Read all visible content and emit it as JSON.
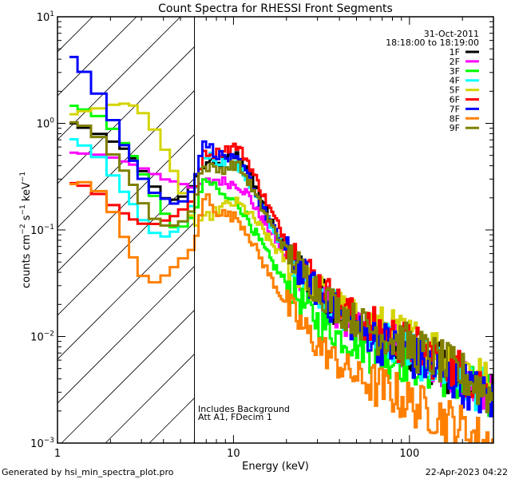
{
  "chart_data": {
    "type": "line",
    "title": "Count Spectra for RHESSI Front Segments",
    "xlabel": "Energy (keV)",
    "ylabel": "counts cm^-2 s^-1 keV^-1",
    "xscale": "log",
    "yscale": "log",
    "xlim": [
      1,
      300
    ],
    "ylim": [
      0.001,
      10
    ],
    "x_tick_labels": [
      "1",
      "10",
      "100"
    ],
    "x_tick_values": [
      1,
      10,
      100
    ],
    "y_tick_labels": [
      {
        "base": "10",
        "exp": "1",
        "value": 10
      },
      {
        "base": "10",
        "exp": "0",
        "value": 1
      },
      {
        "base": "10",
        "exp": "−1",
        "value": 0.1
      },
      {
        "base": "10",
        "exp": "−2",
        "value": 0.01
      },
      {
        "base": "10",
        "exp": "−3",
        "value": 0.001
      }
    ],
    "grid": false,
    "hatched_region": {
      "from_keV": 1,
      "to_keV": 6,
      "meaning": "excluded low-energy region"
    },
    "vertical_line_keV": 6,
    "legend": {
      "placement": "top-right",
      "date": "31-Oct-2011",
      "time_range": "18:18:00 to 18:19:00"
    },
    "annotations": [
      "Includes Background",
      "Att A1, FDecim 1"
    ],
    "series": [
      {
        "name": "1F",
        "color": "#000000",
        "points": [
          [
            1.17,
            1.1
          ],
          [
            1.3,
            0.91
          ],
          [
            1.5,
            0.91
          ],
          [
            1.9,
            0.72
          ],
          [
            2.3,
            0.62
          ],
          [
            2.8,
            0.44
          ],
          [
            3.3,
            0.3
          ],
          [
            4.0,
            0.2
          ],
          [
            4.8,
            0.19
          ],
          [
            5.5,
            0.22
          ],
          [
            6.0,
            0.3
          ],
          [
            6.5,
            0.36
          ],
          [
            7.0,
            0.42
          ],
          [
            8.0,
            0.4
          ],
          [
            9.0,
            0.46
          ],
          [
            10.5,
            0.5
          ],
          [
            12,
            0.38
          ],
          [
            14,
            0.22
          ],
          [
            16,
            0.13
          ],
          [
            18,
            0.09
          ],
          [
            20,
            0.065
          ],
          [
            25,
            0.04
          ],
          [
            30,
            0.028
          ],
          [
            40,
            0.017
          ],
          [
            50,
            0.013
          ],
          [
            60,
            0.011
          ],
          [
            80,
            0.009
          ],
          [
            100,
            0.0075
          ],
          [
            130,
            0.006
          ],
          [
            160,
            0.005
          ],
          [
            200,
            0.0042
          ],
          [
            250,
            0.0033
          ],
          [
            300,
            0.0026
          ]
        ]
      },
      {
        "name": "2F",
        "color": "#ff00ff",
        "points": [
          [
            1.17,
            0.54
          ],
          [
            1.3,
            0.52
          ],
          [
            1.5,
            0.52
          ],
          [
            1.9,
            0.5
          ],
          [
            2.3,
            0.45
          ],
          [
            2.8,
            0.4
          ],
          [
            3.3,
            0.36
          ],
          [
            4.0,
            0.3
          ],
          [
            4.8,
            0.28
          ],
          [
            5.5,
            0.26
          ],
          [
            6.0,
            0.24
          ],
          [
            6.5,
            0.27
          ],
          [
            7.0,
            0.28
          ],
          [
            8.0,
            0.3
          ],
          [
            9.0,
            0.28
          ],
          [
            10.5,
            0.27
          ],
          [
            12,
            0.22
          ],
          [
            14,
            0.14
          ],
          [
            16,
            0.1
          ],
          [
            18,
            0.075
          ],
          [
            20,
            0.055
          ],
          [
            25,
            0.036
          ],
          [
            30,
            0.026
          ],
          [
            40,
            0.016
          ],
          [
            50,
            0.012
          ],
          [
            60,
            0.01
          ],
          [
            80,
            0.0085
          ],
          [
            100,
            0.0072
          ],
          [
            130,
            0.006
          ],
          [
            160,
            0.0052
          ],
          [
            200,
            0.0043
          ],
          [
            250,
            0.0035
          ],
          [
            300,
            0.003
          ]
        ]
      },
      {
        "name": "3F",
        "color": "#00ff00",
        "points": [
          [
            1.17,
            1.58
          ],
          [
            1.3,
            1.35
          ],
          [
            1.5,
            1.35
          ],
          [
            1.9,
            1.05
          ],
          [
            2.3,
            0.72
          ],
          [
            2.8,
            0.45
          ],
          [
            3.3,
            0.26
          ],
          [
            4.0,
            0.15
          ],
          [
            4.8,
            0.095
          ],
          [
            5.5,
            0.12
          ],
          [
            6.0,
            0.14
          ],
          [
            6.5,
            0.22
          ],
          [
            7.0,
            0.3
          ],
          [
            8.0,
            0.24
          ],
          [
            9.0,
            0.2
          ],
          [
            10.5,
            0.18
          ],
          [
            12,
            0.13
          ],
          [
            14,
            0.08
          ],
          [
            16,
            0.055
          ],
          [
            18,
            0.04
          ],
          [
            20,
            0.032
          ],
          [
            25,
            0.02
          ],
          [
            30,
            0.014
          ],
          [
            40,
            0.01
          ],
          [
            50,
            0.0085
          ],
          [
            60,
            0.0075
          ],
          [
            80,
            0.0065
          ],
          [
            100,
            0.0058
          ],
          [
            130,
            0.005
          ],
          [
            160,
            0.0044
          ],
          [
            200,
            0.0036
          ],
          [
            250,
            0.003
          ],
          [
            300,
            0.0025
          ]
        ]
      },
      {
        "name": "4F",
        "color": "#00ffff",
        "points": [
          [
            1.17,
            0.81
          ],
          [
            1.3,
            0.62
          ],
          [
            1.5,
            0.62
          ],
          [
            1.9,
            0.4
          ],
          [
            2.3,
            0.25
          ],
          [
            2.8,
            0.16
          ],
          [
            3.3,
            0.1
          ],
          [
            4.0,
            0.085
          ],
          [
            4.8,
            0.1
          ],
          [
            5.5,
            0.14
          ],
          [
            6.0,
            0.2
          ],
          [
            6.5,
            0.4
          ],
          [
            7.0,
            0.52
          ],
          [
            8.0,
            0.46
          ],
          [
            9.0,
            0.42
          ],
          [
            10.5,
            0.4
          ],
          [
            12,
            0.3
          ],
          [
            14,
            0.18
          ],
          [
            16,
            0.12
          ],
          [
            18,
            0.085
          ],
          [
            20,
            0.062
          ],
          [
            25,
            0.04
          ],
          [
            30,
            0.028
          ],
          [
            40,
            0.017
          ],
          [
            50,
            0.013
          ],
          [
            60,
            0.011
          ],
          [
            80,
            0.0088
          ],
          [
            100,
            0.0072
          ],
          [
            130,
            0.0058
          ],
          [
            160,
            0.0048
          ],
          [
            200,
            0.004
          ],
          [
            250,
            0.0032
          ],
          [
            300,
            0.0026
          ]
        ]
      },
      {
        "name": "5F",
        "color": "#d4d400",
        "points": [
          [
            1.17,
            1.14
          ],
          [
            1.3,
            1.3
          ],
          [
            1.5,
            1.3
          ],
          [
            1.9,
            1.45
          ],
          [
            2.3,
            1.55
          ],
          [
            2.8,
            1.45
          ],
          [
            3.3,
            1.1
          ],
          [
            4.0,
            0.62
          ],
          [
            4.8,
            0.3
          ],
          [
            5.5,
            0.17
          ],
          [
            6.0,
            0.11
          ],
          [
            6.5,
            0.11
          ],
          [
            7.0,
            0.13
          ],
          [
            8.0,
            0.15
          ],
          [
            9.0,
            0.17
          ],
          [
            10.5,
            0.18
          ],
          [
            12,
            0.15
          ],
          [
            14,
            0.11
          ],
          [
            16,
            0.08
          ],
          [
            18,
            0.062
          ],
          [
            20,
            0.05
          ],
          [
            25,
            0.036
          ],
          [
            30,
            0.028
          ],
          [
            40,
            0.019
          ],
          [
            50,
            0.015
          ],
          [
            60,
            0.013
          ],
          [
            80,
            0.011
          ],
          [
            100,
            0.0095
          ],
          [
            130,
            0.0082
          ],
          [
            160,
            0.0068
          ],
          [
            200,
            0.0055
          ],
          [
            250,
            0.0042
          ],
          [
            300,
            0.003
          ]
        ]
      },
      {
        "name": "6F",
        "color": "#ff0000",
        "points": [
          [
            1.17,
            0.29
          ],
          [
            1.3,
            0.26
          ],
          [
            1.5,
            0.26
          ],
          [
            1.9,
            0.19
          ],
          [
            2.3,
            0.15
          ],
          [
            2.8,
            0.12
          ],
          [
            3.3,
            0.11
          ],
          [
            4.0,
            0.12
          ],
          [
            4.8,
            0.14
          ],
          [
            5.5,
            0.17
          ],
          [
            6.0,
            0.2
          ],
          [
            6.5,
            0.42
          ],
          [
            7.0,
            0.55
          ],
          [
            8.0,
            0.52
          ],
          [
            9.0,
            0.58
          ],
          [
            10.5,
            0.61
          ],
          [
            12,
            0.45
          ],
          [
            14,
            0.26
          ],
          [
            16,
            0.16
          ],
          [
            18,
            0.11
          ],
          [
            20,
            0.08
          ],
          [
            25,
            0.048
          ],
          [
            30,
            0.033
          ],
          [
            40,
            0.02
          ],
          [
            50,
            0.015
          ],
          [
            60,
            0.012
          ],
          [
            80,
            0.0098
          ],
          [
            100,
            0.0082
          ],
          [
            130,
            0.0068
          ],
          [
            160,
            0.0056
          ],
          [
            200,
            0.0046
          ],
          [
            250,
            0.0036
          ],
          [
            300,
            0.0028
          ]
        ]
      },
      {
        "name": "7F",
        "color": "#0000ff",
        "points": [
          [
            1.17,
            4.5
          ],
          [
            1.3,
            3.9
          ],
          [
            1.5,
            2.6
          ],
          [
            1.9,
            1.5
          ],
          [
            2.3,
            0.7
          ],
          [
            2.8,
            0.4
          ],
          [
            3.3,
            0.24
          ],
          [
            4.0,
            0.2
          ],
          [
            4.8,
            0.17
          ],
          [
            5.5,
            0.2
          ],
          [
            6.0,
            0.26
          ],
          [
            6.5,
            0.55
          ],
          [
            7.0,
            0.66
          ],
          [
            8.0,
            0.52
          ],
          [
            9.0,
            0.48
          ],
          [
            10.5,
            0.44
          ],
          [
            12,
            0.33
          ],
          [
            14,
            0.19
          ],
          [
            16,
            0.12
          ],
          [
            18,
            0.085
          ],
          [
            20,
            0.062
          ],
          [
            25,
            0.038
          ],
          [
            30,
            0.026
          ],
          [
            40,
            0.016
          ],
          [
            50,
            0.012
          ],
          [
            60,
            0.01
          ],
          [
            80,
            0.008
          ],
          [
            100,
            0.0066
          ],
          [
            130,
            0.0054
          ],
          [
            160,
            0.0044
          ],
          [
            200,
            0.0036
          ],
          [
            250,
            0.0029
          ],
          [
            300,
            0.0024
          ]
        ]
      },
      {
        "name": "8F",
        "color": "#ff8000",
        "points": [
          [
            1.17,
            0.26
          ],
          [
            1.3,
            0.28
          ],
          [
            1.5,
            0.28
          ],
          [
            1.9,
            0.2
          ],
          [
            2.3,
            0.1
          ],
          [
            2.8,
            0.048
          ],
          [
            3.3,
            0.03
          ],
          [
            4.0,
            0.036
          ],
          [
            4.8,
            0.048
          ],
          [
            5.5,
            0.06
          ],
          [
            6.0,
            0.07
          ],
          [
            6.5,
            0.14
          ],
          [
            7.0,
            0.22
          ],
          [
            8.0,
            0.15
          ],
          [
            9.0,
            0.14
          ],
          [
            10.5,
            0.13
          ],
          [
            12,
            0.095
          ],
          [
            14,
            0.058
          ],
          [
            16,
            0.038
          ],
          [
            18,
            0.027
          ],
          [
            20,
            0.02
          ],
          [
            25,
            0.012
          ],
          [
            30,
            0.0085
          ],
          [
            40,
            0.0055
          ],
          [
            50,
            0.0042
          ],
          [
            60,
            0.0036
          ],
          [
            80,
            0.003
          ],
          [
            100,
            0.0024
          ],
          [
            130,
            0.002
          ],
          [
            160,
            0.0017
          ],
          [
            200,
            0.0014
          ],
          [
            250,
            0.0011
          ],
          [
            300,
            0.001
          ]
        ]
      },
      {
        "name": "9F",
        "color": "#808000",
        "points": [
          [
            1.17,
            1.1
          ],
          [
            1.3,
            0.95
          ],
          [
            1.5,
            0.95
          ],
          [
            1.9,
            0.62
          ],
          [
            2.3,
            0.4
          ],
          [
            2.8,
            0.24
          ],
          [
            3.3,
            0.14
          ],
          [
            4.0,
            0.11
          ],
          [
            4.8,
            0.11
          ],
          [
            5.5,
            0.13
          ],
          [
            6.0,
            0.17
          ],
          [
            6.5,
            0.34
          ],
          [
            7.0,
            0.4
          ],
          [
            8.0,
            0.36
          ],
          [
            9.0,
            0.38
          ],
          [
            10.5,
            0.42
          ],
          [
            12,
            0.3
          ],
          [
            14,
            0.18
          ],
          [
            16,
            0.12
          ],
          [
            18,
            0.085
          ],
          [
            20,
            0.063
          ],
          [
            25,
            0.04
          ],
          [
            30,
            0.028
          ],
          [
            40,
            0.018
          ],
          [
            50,
            0.014
          ],
          [
            60,
            0.012
          ],
          [
            80,
            0.0095
          ],
          [
            100,
            0.008
          ],
          [
            130,
            0.0066
          ],
          [
            160,
            0.0054
          ],
          [
            200,
            0.0044
          ],
          [
            250,
            0.0034
          ],
          [
            300,
            0.0027
          ]
        ]
      }
    ]
  },
  "footer": {
    "generated_by": "Generated by hsi_min_spectra_plot.pro",
    "timestamp": "22-Apr-2023 04:22"
  }
}
